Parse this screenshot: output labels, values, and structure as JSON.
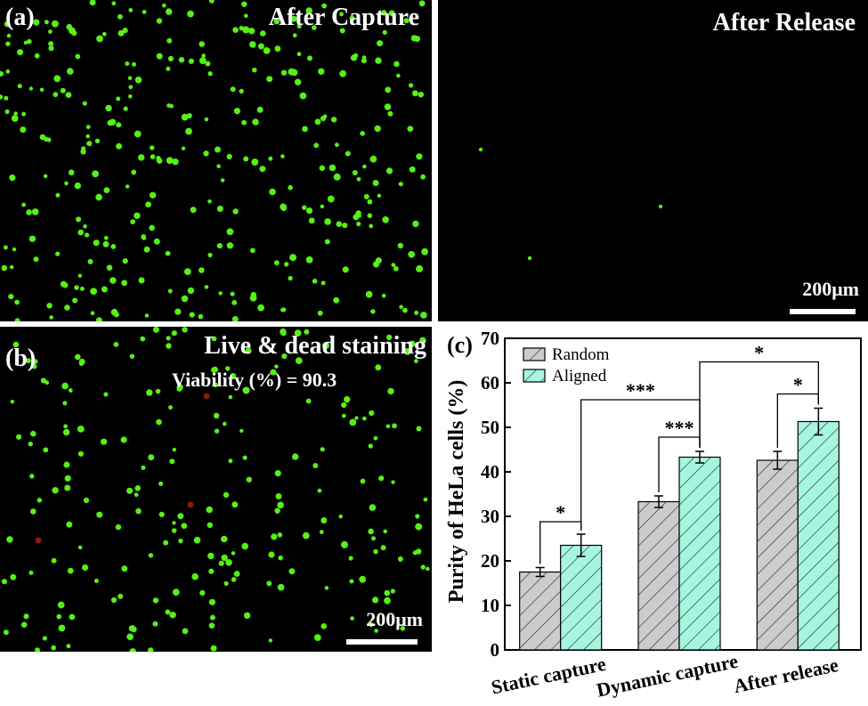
{
  "panel_a": {
    "label": "(a)",
    "left_title": "After Capture",
    "right_title": "After Release",
    "scale_label": "200μm"
  },
  "panel_b": {
    "label": "(b)",
    "title": "Live & dead staining",
    "viability": "Viability (%) = 90.3",
    "scale_label": "200μm"
  },
  "colors": {
    "live_cell": "#56f016",
    "dead_cell": "#8a1a10",
    "random_bar": "#cccccc",
    "aligned_bar": "#a6f5e0"
  },
  "chart_data": {
    "type": "bar",
    "panel_label": "(c)",
    "categories": [
      "Static capture",
      "Dynamic capture",
      "After release"
    ],
    "ylabel": "Purity of HeLa cells (%)",
    "xlabel": "",
    "ylim": [
      0,
      70
    ],
    "yticks": [
      "0",
      "10",
      "20",
      "30",
      "40",
      "50",
      "60",
      "70"
    ],
    "series": [
      {
        "name": "Random",
        "values": [
          17.5,
          33.3,
          42.6
        ],
        "errors": [
          1.0,
          1.3,
          2.0
        ],
        "color": "#cccccc",
        "hatch": "diagonal"
      },
      {
        "name": "Aligned",
        "values": [
          23.5,
          43.3,
          51.3
        ],
        "errors": [
          2.5,
          1.3,
          3.0
        ],
        "color": "#a6f5e0",
        "hatch": "diagonal"
      }
    ],
    "legend_position": "top-left",
    "significance": [
      {
        "label": "*",
        "between": "Static capture Random vs Aligned"
      },
      {
        "label": "***",
        "between": "Dynamic capture Random vs Aligned"
      },
      {
        "label": "*",
        "between": "After release Random vs Aligned"
      },
      {
        "label": "***",
        "between": "Static capture Aligned vs Dynamic capture Aligned"
      },
      {
        "label": "*",
        "between": "Dynamic capture Aligned vs After release Aligned"
      }
    ]
  }
}
